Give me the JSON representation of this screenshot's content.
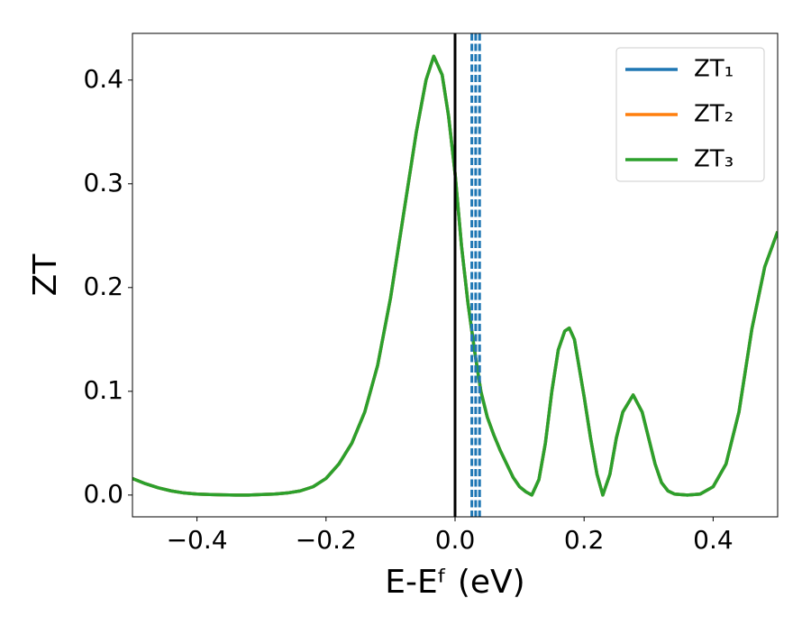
{
  "chart_data": {
    "type": "line",
    "xlabel": "E-Eᶠ (eV)",
    "ylabel": "ZT",
    "xlim": [
      -0.5,
      0.5
    ],
    "ylim": [
      -0.021,
      0.445
    ],
    "xticks": [
      {
        "value": -0.4,
        "label": "−0.4"
      },
      {
        "value": -0.2,
        "label": "−0.2"
      },
      {
        "value": 0.0,
        "label": "0.0"
      },
      {
        "value": 0.2,
        "label": "0.2"
      },
      {
        "value": 0.4,
        "label": "0.4"
      }
    ],
    "yticks": [
      {
        "value": 0.0,
        "label": "0.0"
      },
      0.1,
      0.2,
      0.3,
      0.4
    ],
    "legend": "upper right",
    "x": [
      -0.5,
      -0.48,
      -0.46,
      -0.44,
      -0.42,
      -0.4,
      -0.38,
      -0.36,
      -0.34,
      -0.32,
      -0.3,
      -0.28,
      -0.26,
      -0.24,
      -0.22,
      -0.2,
      -0.18,
      -0.16,
      -0.14,
      -0.12,
      -0.1,
      -0.08,
      -0.06,
      -0.045,
      -0.033,
      -0.02,
      -0.01,
      0.0,
      0.01,
      0.02,
      0.03,
      0.04,
      0.05,
      0.06,
      0.07,
      0.08,
      0.09,
      0.1,
      0.11,
      0.119,
      0.13,
      0.14,
      0.15,
      0.16,
      0.17,
      0.177,
      0.185,
      0.2,
      0.21,
      0.22,
      0.229,
      0.24,
      0.25,
      0.26,
      0.276,
      0.29,
      0.3,
      0.31,
      0.32,
      0.33,
      0.34,
      0.36,
      0.38,
      0.4,
      0.42,
      0.44,
      0.46,
      0.48,
      0.5
    ],
    "series": [
      {
        "name": "ZT₁",
        "color": "#1f77b4",
        "values": [
          0.016,
          0.011,
          0.007,
          0.004,
          0.002,
          0.001,
          0.0005,
          0.0002,
          0.0,
          0.0,
          0.0005,
          0.001,
          0.002,
          0.004,
          0.008,
          0.016,
          0.03,
          0.05,
          0.08,
          0.125,
          0.19,
          0.27,
          0.35,
          0.4,
          0.423,
          0.405,
          0.365,
          0.31,
          0.24,
          0.185,
          0.14,
          0.1,
          0.075,
          0.058,
          0.043,
          0.03,
          0.017,
          0.008,
          0.003,
          0.0,
          0.015,
          0.05,
          0.1,
          0.14,
          0.158,
          0.161,
          0.15,
          0.095,
          0.055,
          0.02,
          0.0,
          0.02,
          0.055,
          0.08,
          0.0965,
          0.08,
          0.055,
          0.03,
          0.012,
          0.004,
          0.001,
          0.0,
          0.001,
          0.008,
          0.03,
          0.08,
          0.16,
          0.22,
          0.254
        ]
      },
      {
        "name": "ZT₂",
        "color": "#ff7f0e",
        "values": [
          0.016,
          0.011,
          0.007,
          0.004,
          0.002,
          0.001,
          0.0005,
          0.0002,
          0.0,
          0.0,
          0.0005,
          0.001,
          0.002,
          0.004,
          0.008,
          0.016,
          0.03,
          0.05,
          0.08,
          0.125,
          0.19,
          0.27,
          0.35,
          0.4,
          0.423,
          0.405,
          0.365,
          0.31,
          0.24,
          0.185,
          0.14,
          0.1,
          0.075,
          0.058,
          0.043,
          0.03,
          0.017,
          0.008,
          0.003,
          0.0,
          0.015,
          0.05,
          0.1,
          0.14,
          0.158,
          0.161,
          0.15,
          0.095,
          0.055,
          0.02,
          0.0,
          0.02,
          0.055,
          0.08,
          0.0965,
          0.08,
          0.055,
          0.03,
          0.012,
          0.004,
          0.001,
          0.0,
          0.001,
          0.008,
          0.03,
          0.08,
          0.16,
          0.22,
          0.254
        ]
      },
      {
        "name": "ZT₃",
        "color": "#2ca02c",
        "values": [
          0.016,
          0.011,
          0.007,
          0.004,
          0.002,
          0.001,
          0.0005,
          0.0002,
          0.0,
          0.0,
          0.0005,
          0.001,
          0.002,
          0.004,
          0.008,
          0.016,
          0.03,
          0.05,
          0.08,
          0.125,
          0.19,
          0.27,
          0.35,
          0.4,
          0.423,
          0.405,
          0.365,
          0.31,
          0.24,
          0.185,
          0.14,
          0.1,
          0.075,
          0.058,
          0.043,
          0.03,
          0.017,
          0.008,
          0.003,
          0.0,
          0.015,
          0.05,
          0.1,
          0.14,
          0.158,
          0.161,
          0.15,
          0.095,
          0.055,
          0.02,
          0.0,
          0.02,
          0.055,
          0.08,
          0.0965,
          0.08,
          0.055,
          0.03,
          0.012,
          0.004,
          0.001,
          0.0,
          0.001,
          0.008,
          0.03,
          0.08,
          0.16,
          0.22,
          0.254
        ]
      }
    ],
    "vlines": [
      {
        "x": 0.0,
        "color": "#000000",
        "style": "solid"
      },
      {
        "x": 0.026,
        "color": "#1f77b4",
        "style": "dashed"
      },
      {
        "x": 0.032,
        "color": "#1f77b4",
        "style": "dashed"
      },
      {
        "x": 0.038,
        "color": "#1f77b4",
        "style": "dashed"
      }
    ]
  }
}
